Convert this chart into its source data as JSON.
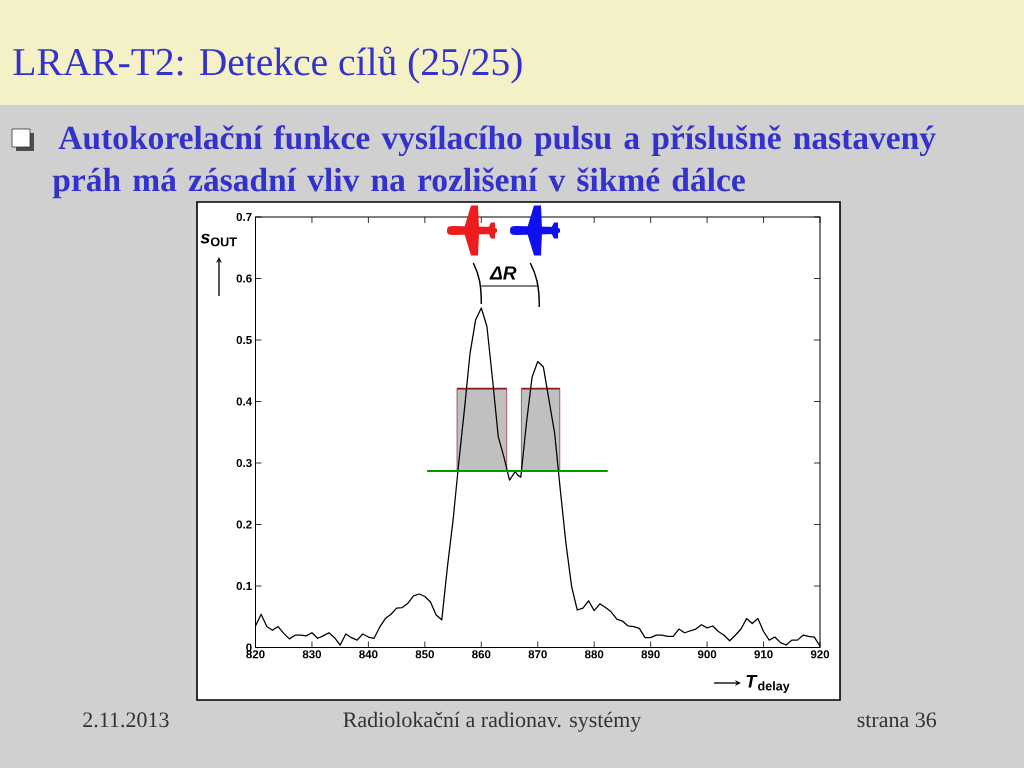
{
  "chart_data": {
    "type": "line",
    "title": "LRAR-T2: Detekce cílů (25/25)",
    "subtitle": "Autokorelační funkce vysílacího pulsu a příslušně nastavený práh má zásadní vliv na rozlišení v šikmé dálce",
    "xlabel": "*T*$_{delay}$",
    "ylabel": "*s*$_{OUT}$",
    "annotations": [
      {
        "text": "ΔR",
        "x": 860,
        "y": 0.552
      },
      "2.11.2013",
      "Radiolokační a radionav. systémy",
      "strana 36"
    ],
    "xlim": [
      820,
      920
    ],
    "ylim": [
      0,
      0.7
    ],
    "xticks": [
      820,
      830,
      840,
      850,
      860,
      870,
      880,
      890,
      900,
      910,
      920
    ],
    "yticks": [
      0,
      0.1,
      0.2,
      0.3,
      0.4,
      0.5,
      0.6,
      0.7
    ],
    "series": [
      {
        "color": "#000000",
        "x": [
          820,
          821,
          822,
          823,
          824,
          825,
          826,
          827,
          828,
          829,
          830,
          831,
          832,
          833,
          834,
          835,
          836,
          837,
          838,
          839,
          840,
          841,
          842,
          843,
          844,
          845,
          846,
          847,
          848,
          849,
          850,
          851,
          852,
          853,
          854,
          855,
          856,
          857,
          858,
          859,
          860,
          861,
          862,
          863,
          864,
          865,
          866,
          866.5,
          867,
          868,
          869,
          870,
          871,
          872,
          873,
          874,
          875,
          876,
          877,
          878,
          879,
          880,
          881,
          882,
          883,
          884,
          885,
          886,
          887,
          888,
          889,
          890,
          891,
          892,
          893,
          894,
          895,
          896,
          897,
          898,
          899,
          900,
          901,
          902,
          903,
          904,
          905,
          906,
          907,
          908,
          909,
          910,
          911,
          912,
          913,
          914,
          915,
          916,
          917,
          918,
          919,
          920
        ],
        "values": [
          0.035,
          0.054,
          0.034,
          0.028,
          0.034,
          0.023,
          0.014,
          0.02,
          0.02,
          0.019,
          0.024,
          0.015,
          0.019,
          0.024,
          0.016,
          0.004,
          0.022,
          0.016,
          0.012,
          0.022,
          0.017,
          0.015,
          0.033,
          0.047,
          0.054,
          0.064,
          0.065,
          0.072,
          0.084,
          0.087,
          0.083,
          0.074,
          0.053,
          0.045,
          0.131,
          0.207,
          0.3,
          0.386,
          0.478,
          0.533,
          0.552,
          0.522,
          0.435,
          0.343,
          0.31,
          0.272,
          0.286,
          0.28,
          0.277,
          0.365,
          0.44,
          0.465,
          0.456,
          0.402,
          0.348,
          0.256,
          0.169,
          0.099,
          0.061,
          0.064,
          0.076,
          0.06,
          0.071,
          0.065,
          0.058,
          0.046,
          0.043,
          0.035,
          0.034,
          0.031,
          0.016,
          0.016,
          0.02,
          0.02,
          0.018,
          0.018,
          0.03,
          0.024,
          0.027,
          0.03,
          0.037,
          0.032,
          0.035,
          0.026,
          0.02,
          0.011,
          0.02,
          0.03,
          0.047,
          0.039,
          0.047,
          0.026,
          0.012,
          0.017,
          0.008,
          0.004,
          0.012,
          0.012,
          0.02,
          0.018,
          0.017,
          0.002
        ]
      },
      {
        "color": "#009900",
        "x": [
          850.4,
          882.4
        ],
        "values": [
          0.287,
          0.287
        ]
      },
      {
        "color": "#8b1a1a",
        "x": [
          855.7,
          864.5
        ],
        "values": [
          0.421,
          0.421
        ],
        "lower": [
          0.287,
          0.287
        ],
        "upper": [
          0.421,
          0.421
        ]
      },
      {
        "color": "#8b1a1a",
        "x": [
          867.1,
          873.9
        ],
        "values": [
          0.421,
          0.421
        ],
        "lower": [
          0.287,
          0.287
        ],
        "upper": [
          0.421,
          0.421
        ]
      }
    ]
  }
}
